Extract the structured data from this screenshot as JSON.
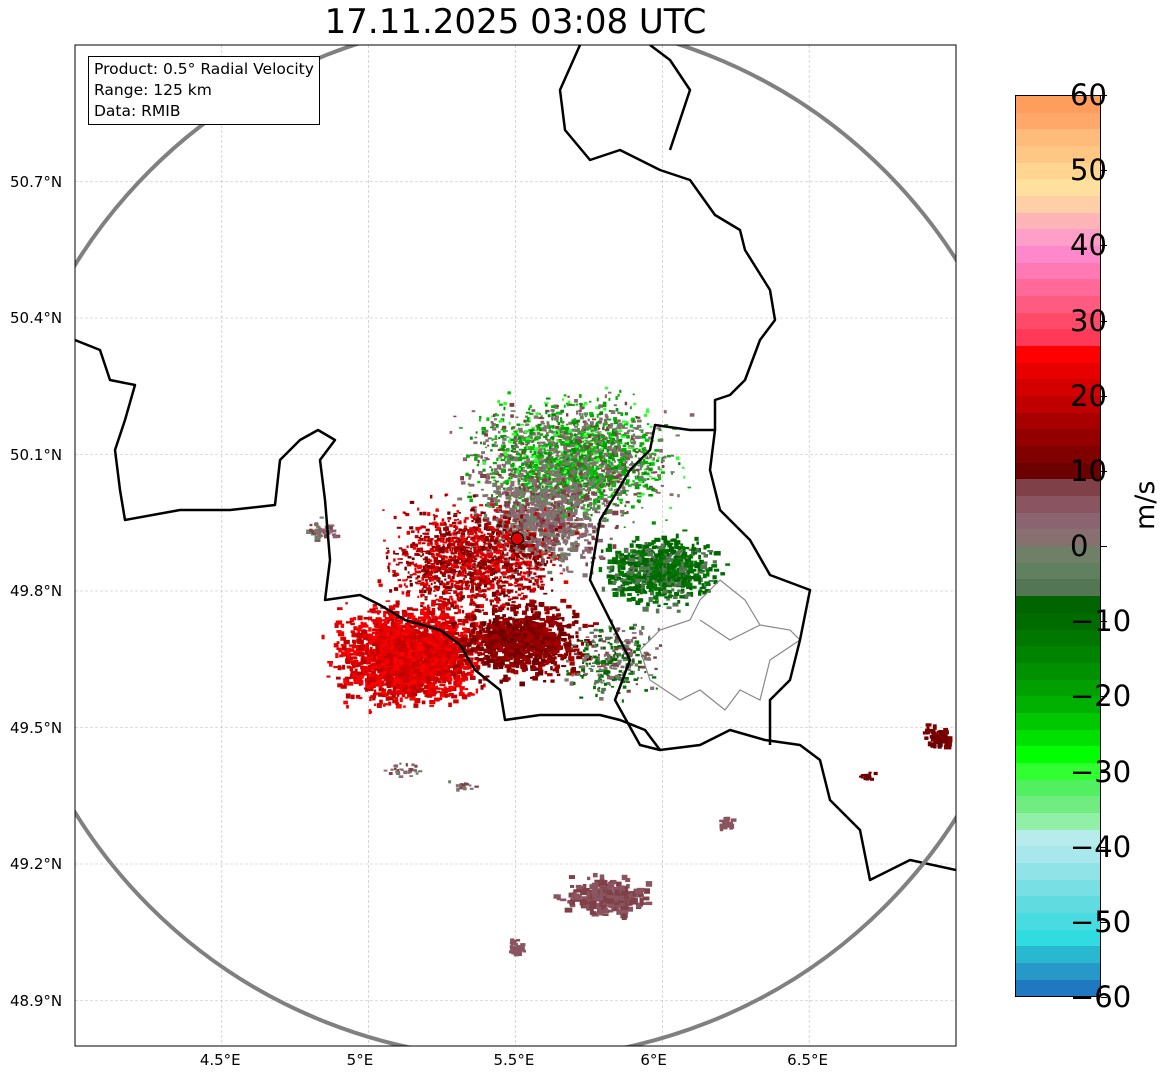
{
  "title": "17.11.2025 03:08 UTC",
  "info": {
    "product": "Product: 0.5° Radial Velocity",
    "range": "Range: 125 km",
    "data": "Data: RMIB"
  },
  "axes": {
    "lon_ticks": [
      {
        "value": 4.5,
        "label": "4.5°E"
      },
      {
        "value": 5.0,
        "label": "5°E"
      },
      {
        "value": 5.5,
        "label": "5.5°E"
      },
      {
        "value": 6.0,
        "label": "6°E"
      },
      {
        "value": 6.5,
        "label": "6.5°E"
      }
    ],
    "lat_ticks": [
      {
        "value": 50.7,
        "label": "50.7°N"
      },
      {
        "value": 50.4,
        "label": "50.4°N"
      },
      {
        "value": 50.1,
        "label": "50.1°N"
      },
      {
        "value": 49.8,
        "label": "49.8°N"
      },
      {
        "value": 49.5,
        "label": "49.5°N"
      },
      {
        "value": 49.2,
        "label": "49.2°N"
      },
      {
        "value": 48.9,
        "label": "48.9°N"
      }
    ],
    "lon_range": [
      4.0,
      7.0
    ],
    "lat_range": [
      48.8,
      51.0
    ]
  },
  "radar_site": {
    "lon": 5.506,
    "lat": 49.915
  },
  "colorbar": {
    "label": "m/s",
    "range": [
      -60,
      60
    ],
    "ticks": [
      {
        "value": 60,
        "label": "60"
      },
      {
        "value": 50,
        "label": "50"
      },
      {
        "value": 40,
        "label": "40"
      },
      {
        "value": 30,
        "label": "30"
      },
      {
        "value": 20,
        "label": "20"
      },
      {
        "value": 10,
        "label": "10"
      },
      {
        "value": 0,
        "label": "0"
      },
      {
        "value": -10,
        "label": "−10"
      },
      {
        "value": -20,
        "label": "−20"
      },
      {
        "value": -30,
        "label": "−30"
      },
      {
        "value": -40,
        "label": "−40"
      },
      {
        "value": -50,
        "label": "−50"
      },
      {
        "value": -60,
        "label": "−60"
      }
    ],
    "colors_top_to_bottom": [
      "#ff9d5c",
      "#ffa86a",
      "#ffbb7a",
      "#ffc684",
      "#ffd590",
      "#ffe09e",
      "#ffd0a8",
      "#ffb4b8",
      "#ff9ec8",
      "#ff88cc",
      "#ff7ab4",
      "#ff6a9a",
      "#ff5a80",
      "#ff4a6a",
      "#ff3a58",
      "#ff0000",
      "#e80000",
      "#d40000",
      "#c00000",
      "#a80000",
      "#940000",
      "#800000",
      "#6c0000",
      "#804048",
      "#8a5460",
      "#8a6470",
      "#887070",
      "#708068",
      "#608060",
      "#547654",
      "#006400",
      "#006c00",
      "#007800",
      "#008400",
      "#009000",
      "#00a000",
      "#00b000",
      "#00c800",
      "#00e000",
      "#00ff00",
      "#30ff30",
      "#50f060",
      "#70ec80",
      "#90f0a8",
      "#b8ecec",
      "#a8e8ec",
      "#90e4e8",
      "#78e0e4",
      "#60dce0",
      "#48dce0",
      "#30dce0",
      "#28b8d0",
      "#2898c8",
      "#2078c0"
    ]
  }
}
